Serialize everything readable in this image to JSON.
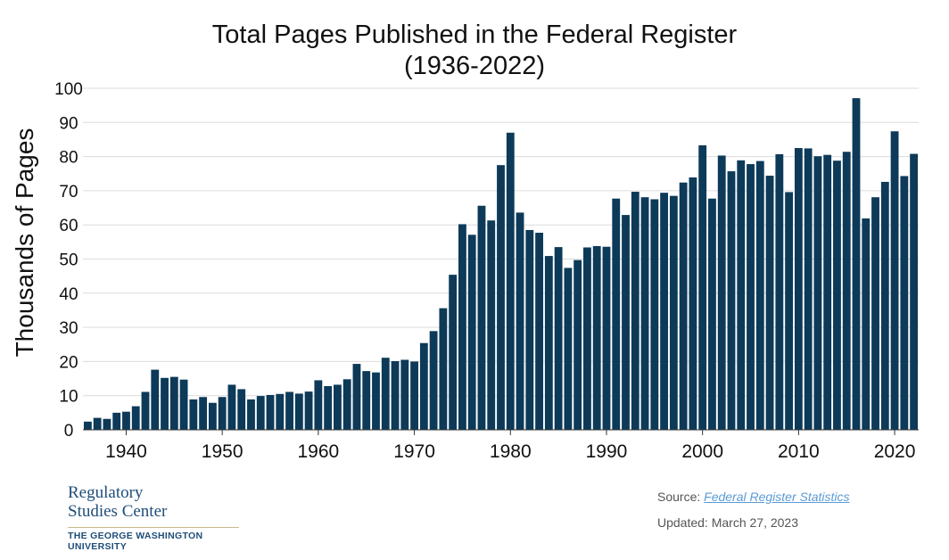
{
  "chart_data": {
    "type": "bar",
    "title_line1": "Total Pages Published in the Federal Register",
    "title_line2": "(1936-2022)",
    "xlabel": "",
    "ylabel": "Thousands of Pages",
    "ylim": [
      0,
      100
    ],
    "yticks": [
      0,
      10,
      20,
      30,
      40,
      50,
      60,
      70,
      80,
      90,
      100
    ],
    "xticks": [
      1940,
      1950,
      1960,
      1970,
      1980,
      1990,
      2000,
      2010,
      2020
    ],
    "grid": true,
    "bar_color": "#0d3a58",
    "years": [
      1936,
      1937,
      1938,
      1939,
      1940,
      1941,
      1942,
      1943,
      1944,
      1945,
      1946,
      1947,
      1948,
      1949,
      1950,
      1951,
      1952,
      1953,
      1954,
      1955,
      1956,
      1957,
      1958,
      1959,
      1960,
      1961,
      1962,
      1963,
      1964,
      1965,
      1966,
      1967,
      1968,
      1969,
      1970,
      1971,
      1972,
      1973,
      1974,
      1975,
      1976,
      1977,
      1978,
      1979,
      1980,
      1981,
      1982,
      1983,
      1984,
      1985,
      1986,
      1987,
      1988,
      1989,
      1990,
      1991,
      1992,
      1993,
      1994,
      1995,
      1996,
      1997,
      1998,
      1999,
      2000,
      2001,
      2002,
      2003,
      2004,
      2005,
      2006,
      2007,
      2008,
      2009,
      2010,
      2011,
      2012,
      2013,
      2014,
      2015,
      2016,
      2017,
      2018,
      2019,
      2020,
      2021,
      2022
    ],
    "values": [
      2.4,
      3.5,
      3.2,
      5.0,
      5.3,
      6.9,
      11.1,
      17.6,
      15.2,
      15.5,
      14.7,
      8.9,
      9.6,
      7.9,
      9.6,
      13.2,
      11.9,
      8.9,
      9.9,
      10.2,
      10.5,
      11.1,
      10.6,
      11.2,
      14.5,
      12.8,
      13.2,
      14.8,
      19.3,
      17.2,
      16.8,
      21.1,
      20.1,
      20.5,
      20.0,
      25.4,
      28.9,
      35.6,
      45.4,
      60.2,
      57.1,
      65.6,
      61.3,
      77.5,
      87.0,
      63.6,
      58.5,
      57.7,
      50.9,
      53.5,
      47.4,
      49.7,
      53.4,
      53.8,
      53.6,
      67.7,
      62.9,
      69.7,
      68.1,
      67.5,
      69.4,
      68.5,
      72.4,
      73.9,
      83.3,
      67.7,
      80.3,
      75.7,
      78.9,
      77.8,
      78.7,
      74.4,
      80.7,
      69.6,
      82.5,
      82.4,
      80.1,
      80.5,
      78.8,
      81.4,
      97.1,
      61.9,
      68.1,
      72.6,
      87.4,
      74.3,
      80.8
    ]
  },
  "logo": {
    "line1": "Regulatory",
    "line2": "Studies Center",
    "line3": "THE GEORGE WASHINGTON UNIVERSITY"
  },
  "footer": {
    "source_prefix": "Source: ",
    "source_link": "Federal Register Statistics",
    "updated": "Updated: March 27, 2023"
  }
}
